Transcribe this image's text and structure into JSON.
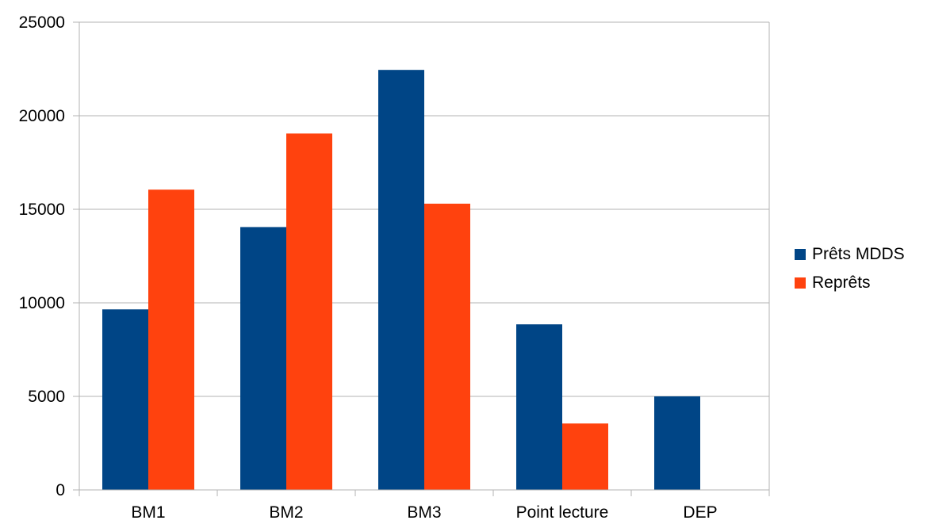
{
  "chart_data": {
    "type": "bar",
    "title": "",
    "xlabel": "",
    "ylabel": "",
    "categories": [
      "BM1",
      "BM2",
      "BM3",
      "Point lecture",
      "DEP"
    ],
    "series": [
      {
        "name": "Prêts MDDS",
        "values": [
          9650,
          14050,
          22450,
          8850,
          5000
        ],
        "color": "#004586"
      },
      {
        "name": "Reprêts",
        "values": [
          16050,
          19050,
          15300,
          3550,
          0
        ],
        "color": "#ff420e"
      }
    ],
    "ylim": [
      0,
      25000
    ],
    "yticks": [
      "0",
      "5000",
      "10000",
      "15000",
      "20000",
      "25000"
    ],
    "grid": true,
    "legend_position": "right"
  }
}
